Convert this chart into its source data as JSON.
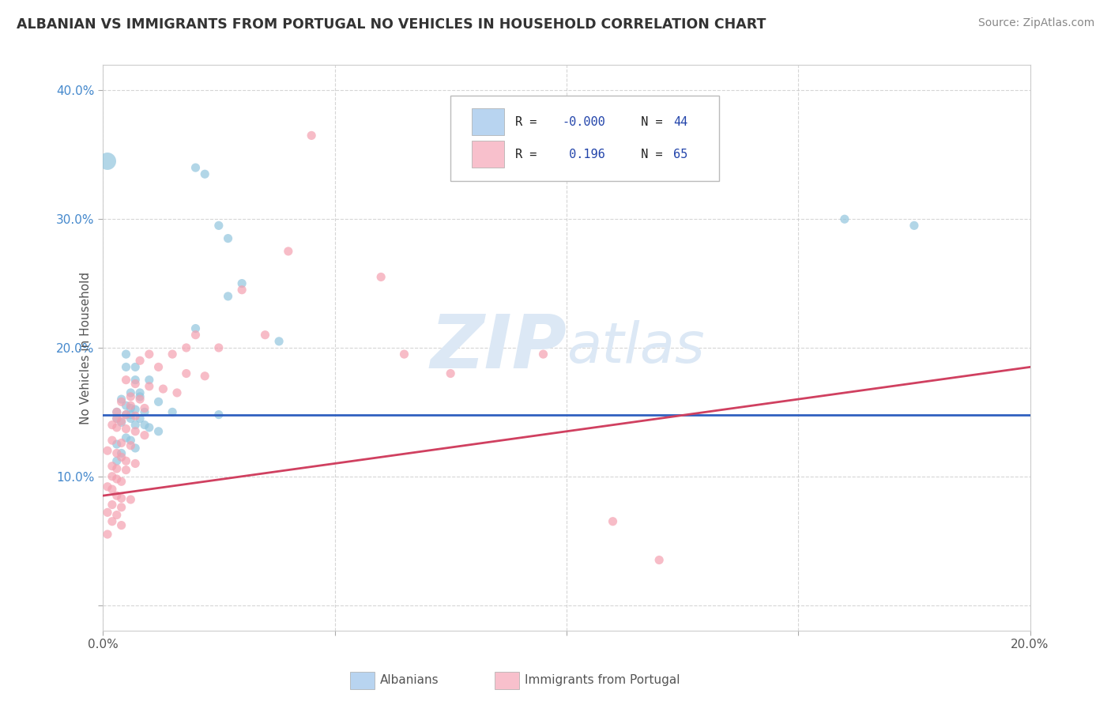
{
  "title": "ALBANIAN VS IMMIGRANTS FROM PORTUGAL NO VEHICLES IN HOUSEHOLD CORRELATION CHART",
  "source": "Source: ZipAtlas.com",
  "ylabel": "No Vehicles in Household",
  "xlim": [
    0.0,
    0.2
  ],
  "ylim": [
    -0.02,
    0.42
  ],
  "xtick_vals": [
    0.0,
    0.05,
    0.1,
    0.15,
    0.2
  ],
  "xticklabels": [
    "0.0%",
    "",
    "",
    "",
    "20.0%"
  ],
  "ytick_vals": [
    0.0,
    0.1,
    0.2,
    0.3,
    0.4
  ],
  "yticklabels": [
    "",
    "10.0%",
    "20.0%",
    "30.0%",
    "40.0%"
  ],
  "watermark": "ZIPatlas",
  "albanian_color": "#92c5de",
  "portugal_color": "#f4a0b0",
  "trend_albanian_color": "#3060c0",
  "trend_portugal_color": "#d04060",
  "legend_box_alb": "#b8d4f0",
  "legend_box_port": "#f8c0cc",
  "legend_text_color": "#2244aa",
  "legend_n_color": "#333333",
  "background_color": "#ffffff",
  "grid_color": "#cccccc",
  "title_color": "#333333",
  "axis_label_color": "#555555",
  "watermark_color": "#dce8f5",
  "trend_alb_x0": 0.0,
  "trend_alb_y0": 0.148,
  "trend_alb_x1": 0.2,
  "trend_alb_y1": 0.148,
  "trend_port_x0": 0.0,
  "trend_port_y0": 0.085,
  "trend_port_x1": 0.2,
  "trend_port_y1": 0.185,
  "albanian_points": [
    [
      0.001,
      0.345
    ],
    [
      0.02,
      0.34
    ],
    [
      0.022,
      0.335
    ],
    [
      0.025,
      0.295
    ],
    [
      0.027,
      0.285
    ],
    [
      0.03,
      0.25
    ],
    [
      0.027,
      0.24
    ],
    [
      0.02,
      0.215
    ],
    [
      0.038,
      0.205
    ],
    [
      0.005,
      0.195
    ],
    [
      0.005,
      0.185
    ],
    [
      0.007,
      0.185
    ],
    [
      0.007,
      0.175
    ],
    [
      0.01,
      0.175
    ],
    [
      0.006,
      0.165
    ],
    [
      0.008,
      0.165
    ],
    [
      0.008,
      0.162
    ],
    [
      0.004,
      0.16
    ],
    [
      0.012,
      0.158
    ],
    [
      0.005,
      0.155
    ],
    [
      0.006,
      0.153
    ],
    [
      0.007,
      0.152
    ],
    [
      0.003,
      0.15
    ],
    [
      0.009,
      0.15
    ],
    [
      0.015,
      0.15
    ],
    [
      0.005,
      0.148
    ],
    [
      0.006,
      0.148
    ],
    [
      0.025,
      0.148
    ],
    [
      0.003,
      0.145
    ],
    [
      0.006,
      0.145
    ],
    [
      0.008,
      0.145
    ],
    [
      0.004,
      0.142
    ],
    [
      0.007,
      0.14
    ],
    [
      0.009,
      0.14
    ],
    [
      0.01,
      0.138
    ],
    [
      0.012,
      0.135
    ],
    [
      0.005,
      0.13
    ],
    [
      0.006,
      0.128
    ],
    [
      0.003,
      0.125
    ],
    [
      0.007,
      0.122
    ],
    [
      0.004,
      0.118
    ],
    [
      0.003,
      0.112
    ],
    [
      0.16,
      0.3
    ],
    [
      0.175,
      0.295
    ]
  ],
  "portugal_points": [
    [
      0.045,
      0.365
    ],
    [
      0.04,
      0.275
    ],
    [
      0.06,
      0.255
    ],
    [
      0.03,
      0.245
    ],
    [
      0.02,
      0.21
    ],
    [
      0.035,
      0.21
    ],
    [
      0.018,
      0.2
    ],
    [
      0.025,
      0.2
    ],
    [
      0.01,
      0.195
    ],
    [
      0.015,
      0.195
    ],
    [
      0.065,
      0.195
    ],
    [
      0.095,
      0.195
    ],
    [
      0.008,
      0.19
    ],
    [
      0.012,
      0.185
    ],
    [
      0.018,
      0.18
    ],
    [
      0.022,
      0.178
    ],
    [
      0.075,
      0.18
    ],
    [
      0.005,
      0.175
    ],
    [
      0.007,
      0.172
    ],
    [
      0.01,
      0.17
    ],
    [
      0.013,
      0.168
    ],
    [
      0.016,
      0.165
    ],
    [
      0.006,
      0.162
    ],
    [
      0.008,
      0.16
    ],
    [
      0.004,
      0.158
    ],
    [
      0.006,
      0.155
    ],
    [
      0.009,
      0.153
    ],
    [
      0.003,
      0.15
    ],
    [
      0.005,
      0.148
    ],
    [
      0.007,
      0.147
    ],
    [
      0.003,
      0.145
    ],
    [
      0.004,
      0.143
    ],
    [
      0.002,
      0.14
    ],
    [
      0.003,
      0.138
    ],
    [
      0.005,
      0.137
    ],
    [
      0.007,
      0.135
    ],
    [
      0.009,
      0.132
    ],
    [
      0.002,
      0.128
    ],
    [
      0.004,
      0.126
    ],
    [
      0.006,
      0.124
    ],
    [
      0.001,
      0.12
    ],
    [
      0.003,
      0.118
    ],
    [
      0.004,
      0.115
    ],
    [
      0.005,
      0.112
    ],
    [
      0.007,
      0.11
    ],
    [
      0.002,
      0.108
    ],
    [
      0.003,
      0.106
    ],
    [
      0.005,
      0.105
    ],
    [
      0.002,
      0.1
    ],
    [
      0.003,
      0.098
    ],
    [
      0.004,
      0.096
    ],
    [
      0.001,
      0.092
    ],
    [
      0.002,
      0.09
    ],
    [
      0.003,
      0.085
    ],
    [
      0.004,
      0.083
    ],
    [
      0.006,
      0.082
    ],
    [
      0.002,
      0.078
    ],
    [
      0.004,
      0.076
    ],
    [
      0.001,
      0.072
    ],
    [
      0.003,
      0.07
    ],
    [
      0.002,
      0.065
    ],
    [
      0.004,
      0.062
    ],
    [
      0.001,
      0.055
    ],
    [
      0.11,
      0.065
    ],
    [
      0.12,
      0.035
    ]
  ]
}
